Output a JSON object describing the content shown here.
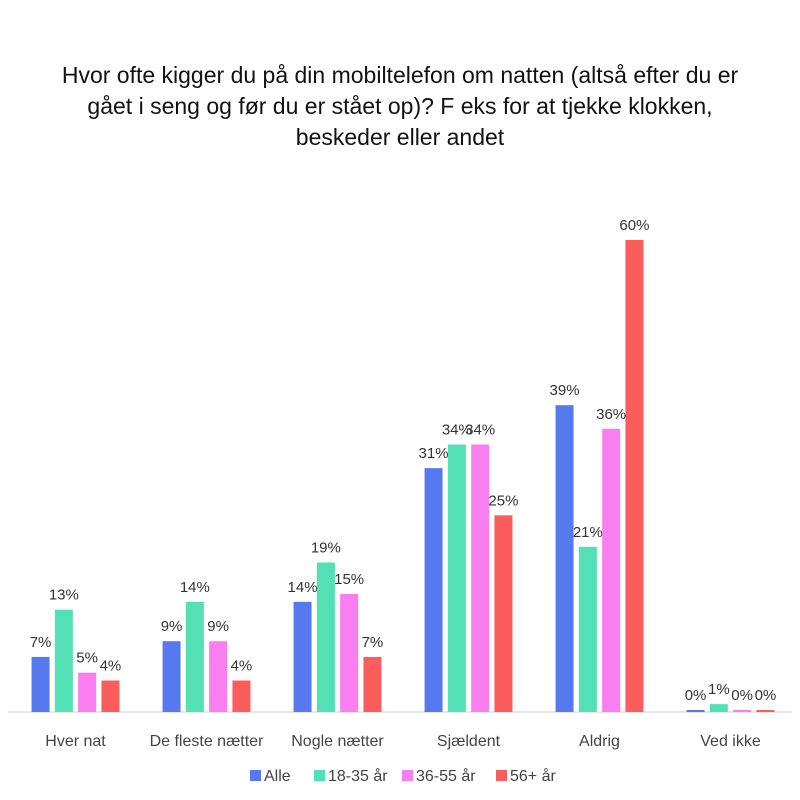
{
  "chart_data": {
    "type": "bar",
    "title": "Hvor ofte kigger du på din mobiltelefon om natten (altså efter du er gået i seng og før du er stået op)? F eks  for at tjekke klokken, beskeder eller andet",
    "categories": [
      "Hver nat",
      "De fleste nætter",
      "Nogle nætter",
      "Sjældent",
      "Aldrig",
      "Ved ikke"
    ],
    "series": [
      {
        "name": "Alle",
        "color": "#5779f0",
        "values": [
          7,
          9,
          14,
          31,
          39,
          0
        ],
        "labels": [
          "7%",
          "9%",
          "14%",
          "31%",
          "39%",
          "0%"
        ]
      },
      {
        "name": "18-35 år",
        "color": "#52e0b4",
        "values": [
          13,
          14,
          19,
          34,
          21,
          1
        ],
        "labels": [
          "13%",
          "14%",
          "19%",
          "34%",
          "21%",
          "1%"
        ]
      },
      {
        "name": "36-55 år",
        "color": "#f97ff0",
        "values": [
          5,
          9,
          15,
          34,
          36,
          0
        ],
        "labels": [
          "5%",
          "9%",
          "15%",
          "34%",
          "36%",
          "0%"
        ]
      },
      {
        "name": "56+ år",
        "color": "#fb5c5c",
        "values": [
          4,
          4,
          7,
          25,
          60,
          0
        ],
        "labels": [
          "4%",
          "4%",
          "7%",
          "25%",
          "60%",
          "0%"
        ]
      }
    ],
    "ylim": [
      0,
      60
    ],
    "grid": false,
    "legend_position": "bottom"
  }
}
